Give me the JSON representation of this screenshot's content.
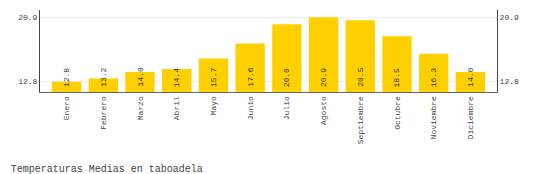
{
  "chart_data": {
    "type": "bar",
    "title": "Temperaturas Medias en taboadela",
    "categories": [
      "Enero",
      "Febrero",
      "Marzo",
      "Abril",
      "Mayo",
      "Junio",
      "Julio",
      "Agosto",
      "Septiembre",
      "Octubre",
      "Noviembre",
      "Diciembre"
    ],
    "values": [
      12.8,
      13.2,
      14.0,
      14.4,
      15.7,
      17.6,
      20.0,
      20.9,
      20.5,
      18.5,
      16.3,
      14.0
    ],
    "value_labels": [
      "12.8",
      "13.2",
      "14.0",
      "14.4",
      "15.7",
      "17.6",
      "20.0",
      "20.9",
      "20.5",
      "18.5",
      "16.3",
      "14.0"
    ],
    "data_labels": true,
    "color": "#FFD000",
    "ylim": [
      11.5,
      21.8
    ],
    "yticks": [
      12.8,
      20.9
    ],
    "y2lim": [
      11.5,
      21.8
    ],
    "y2ticks": [
      12.8,
      20.9
    ],
    "grid": true
  }
}
